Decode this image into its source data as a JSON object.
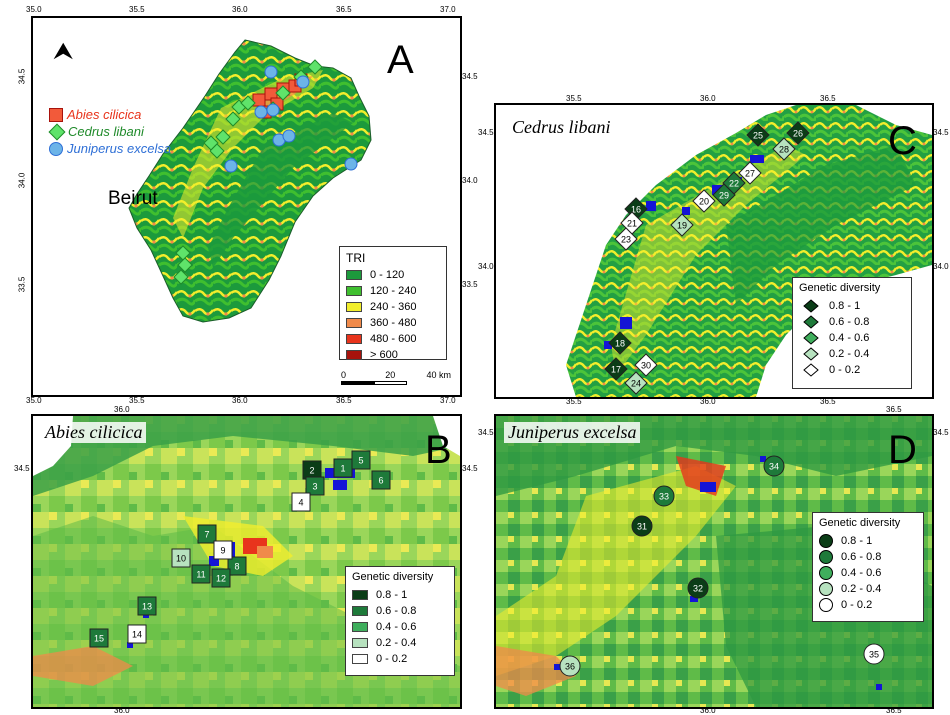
{
  "colors": {
    "tri_0_120": "#1c9a3c",
    "tri_120_240": "#3fbf2f",
    "tri_240_360": "#f2ee2c",
    "tri_360_480": "#f08a4a",
    "tri_480_600": "#e8341c",
    "tri_gt600": "#a8120c",
    "gd_08_1": "#0b3d17",
    "gd_06_08": "#1e7a3a",
    "gd_04_06": "#3fae5c",
    "gd_02_04": "#b7e2bf",
    "gd_0_02": "#ffffff",
    "abies": "#f25a3a",
    "cedrus": "#5fe36a",
    "juniperus": "#6cb4e8",
    "presence": "#1414d6"
  },
  "panelA": {
    "letter": "A",
    "beirut": "Beirut",
    "north_icon": "north-arrow-icon",
    "species": [
      {
        "label": "Abies cilicica",
        "color": "#e8341c"
      },
      {
        "label": "Cedrus libani",
        "color": "#1f8a2a"
      },
      {
        "label": "Juniperus excelsa",
        "color": "#2e6fd6"
      }
    ],
    "legend_title": "TRI",
    "legend_items": [
      "0 - 120",
      "120 - 240",
      "240 - 360",
      "360 - 480",
      "480 - 600",
      "> 600"
    ],
    "scale": {
      "zero": "0",
      "mid": "20",
      "end": "40 km"
    },
    "top_ticks": [
      "35.0",
      "35.5",
      "36.0",
      "36.5",
      "37.0"
    ],
    "bottom_ticks": [
      "35.0",
      "35.5",
      "36.0",
      "36.5",
      "37.0"
    ],
    "left_ticks": [
      "34.5",
      "34.0",
      "33.5"
    ],
    "right_ticks": [
      "34.5",
      "34.0",
      "33.5"
    ]
  },
  "panelB": {
    "letter": "B",
    "title": "Abies cilicica",
    "legend_title": "Genetic diversity",
    "legend_items": [
      "0.8 - 1",
      "0.6 - 0.8",
      "0.4 - 0.6",
      "0.2 - 0.4",
      "0 - 0.2"
    ],
    "top_ticks": [
      "36.0"
    ],
    "bottom_ticks": [
      "36.0"
    ],
    "left_ticks": [
      "34.5"
    ],
    "right_ticks": [
      "34.5"
    ],
    "sites": [
      {
        "id": "1",
        "class": 2
      },
      {
        "id": "2",
        "class": 1
      },
      {
        "id": "3",
        "class": 2
      },
      {
        "id": "4",
        "class": 5
      },
      {
        "id": "5",
        "class": 2
      },
      {
        "id": "6",
        "class": 2
      },
      {
        "id": "7",
        "class": 2
      },
      {
        "id": "8",
        "class": 2
      },
      {
        "id": "9",
        "class": 5
      },
      {
        "id": "10",
        "class": 4
      },
      {
        "id": "11",
        "class": 2
      },
      {
        "id": "12",
        "class": 2
      },
      {
        "id": "13",
        "class": 2
      },
      {
        "id": "14",
        "class": 5
      },
      {
        "id": "15",
        "class": 2
      }
    ]
  },
  "panelC": {
    "letter": "C",
    "title": "Cedrus libani",
    "legend_title": "Genetic diversity",
    "legend_items": [
      "0.8 - 1",
      "0.6 - 0.8",
      "0.4 - 0.6",
      "0.2 - 0.4",
      "0 - 0.2"
    ],
    "top_ticks": [
      "35.5",
      "36.0",
      "36.5"
    ],
    "bottom_ticks": [
      "35.5",
      "36.0",
      "36.5"
    ],
    "left_ticks": [
      "34.5",
      "34.0"
    ],
    "right_ticks": [
      "34.5",
      "34.0"
    ],
    "sites": [
      {
        "id": "16",
        "class": 1
      },
      {
        "id": "17",
        "class": 1
      },
      {
        "id": "18",
        "class": 1
      },
      {
        "id": "19",
        "class": 4
      },
      {
        "id": "20",
        "class": 5
      },
      {
        "id": "21",
        "class": 5
      },
      {
        "id": "22",
        "class": 2
      },
      {
        "id": "23",
        "class": 5
      },
      {
        "id": "24",
        "class": 4
      },
      {
        "id": "25",
        "class": 1
      },
      {
        "id": "26",
        "class": 1
      },
      {
        "id": "27",
        "class": 5
      },
      {
        "id": "28",
        "class": 4
      },
      {
        "id": "29",
        "class": 2
      },
      {
        "id": "30",
        "class": 5
      }
    ]
  },
  "panelD": {
    "letter": "D",
    "title": "Juniperus excelsa",
    "legend_title": "Genetic diversity",
    "legend_items": [
      "0.8 - 1",
      "0.6 - 0.8",
      "0.4 - 0.6",
      "0.2 - 0.4",
      "0 - 0.2"
    ],
    "top_ticks": [
      "36.5"
    ],
    "bottom_ticks": [
      "36.0",
      "36.5"
    ],
    "left_ticks": [
      "34.5"
    ],
    "right_ticks": [
      "34.5"
    ],
    "sites": [
      {
        "id": "31",
        "class": 1
      },
      {
        "id": "32",
        "class": 1
      },
      {
        "id": "33",
        "class": 2
      },
      {
        "id": "34",
        "class": 2
      },
      {
        "id": "35",
        "class": 5
      },
      {
        "id": "36",
        "class": 4
      }
    ]
  }
}
